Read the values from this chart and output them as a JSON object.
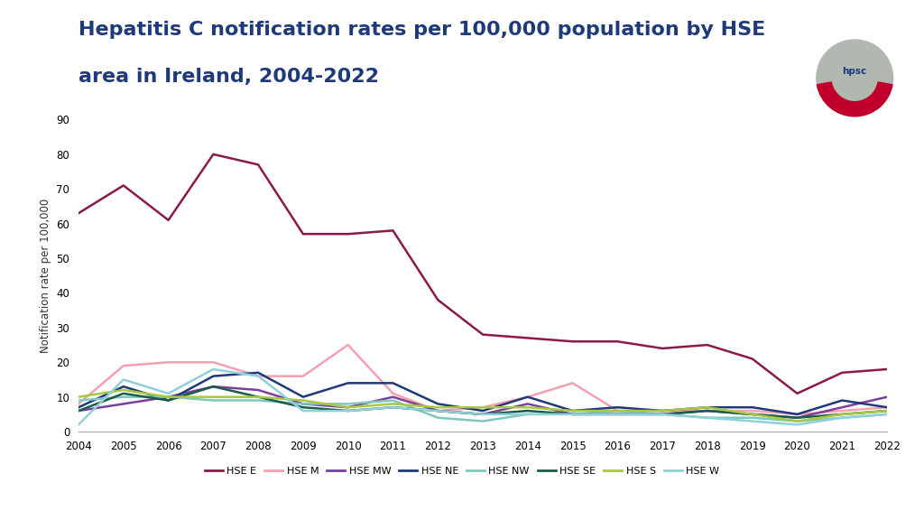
{
  "title_line1": "Hepatitis C notification rates per 100,000 population by HSE",
  "title_line2": "area in Ireland, 2004-2022",
  "ylabel": "Notification rate per 100,000",
  "years": [
    2004,
    2005,
    2006,
    2007,
    2008,
    2009,
    2010,
    2011,
    2012,
    2013,
    2014,
    2015,
    2016,
    2017,
    2018,
    2019,
    2020,
    2021,
    2022
  ],
  "series": {
    "HSE E": [
      63,
      71,
      61,
      80,
      77,
      57,
      57,
      58,
      38,
      28,
      27,
      26,
      26,
      24,
      25,
      21,
      11,
      17,
      18
    ],
    "HSE M": [
      8,
      19,
      20,
      20,
      16,
      16,
      25,
      11,
      6,
      7,
      10,
      14,
      6,
      6,
      6,
      6,
      5,
      6,
      7
    ],
    "HSE MW": [
      6,
      8,
      10,
      13,
      12,
      8,
      7,
      10,
      6,
      5,
      8,
      5,
      5,
      5,
      6,
      5,
      4,
      7,
      10
    ],
    "HSE NE": [
      7,
      13,
      9,
      16,
      17,
      10,
      14,
      14,
      8,
      6,
      10,
      6,
      7,
      6,
      7,
      7,
      5,
      9,
      7
    ],
    "HSE NW": [
      9,
      10,
      10,
      9,
      9,
      8,
      8,
      9,
      4,
      3,
      5,
      5,
      6,
      5,
      4,
      4,
      3,
      4,
      5
    ],
    "HSE SE": [
      6,
      11,
      9,
      13,
      10,
      7,
      6,
      7,
      6,
      5,
      6,
      5,
      5,
      5,
      6,
      5,
      4,
      5,
      6
    ],
    "HSE S": [
      10,
      12,
      10,
      10,
      10,
      9,
      7,
      8,
      7,
      7,
      7,
      6,
      6,
      6,
      7,
      5,
      3,
      5,
      6
    ],
    "HSE W": [
      2,
      15,
      11,
      18,
      16,
      6,
      6,
      7,
      6,
      5,
      5,
      5,
      5,
      5,
      4,
      3,
      2,
      4,
      5
    ]
  },
  "colors": {
    "HSE E": "#8B1A4A",
    "HSE M": "#F4A0B0",
    "HSE MW": "#7B3F9E",
    "HSE NE": "#1F3A7A",
    "HSE NW": "#7EC8C0",
    "HSE SE": "#1A5C4A",
    "HSE S": "#A8C840",
    "HSE W": "#90D0D8"
  },
  "ylim": [
    0,
    90
  ],
  "yticks": [
    0,
    10,
    20,
    30,
    40,
    50,
    60,
    70,
    80,
    90
  ],
  "background_color": "#ffffff",
  "title_color": "#1F3A7A",
  "title_fontsize": 16,
  "footer_color": "#C0002A",
  "logo_circle_color": "#b0b8b0",
  "logo_crescent_color": "#C0002A",
  "logo_text_color": "#1F3A7A"
}
